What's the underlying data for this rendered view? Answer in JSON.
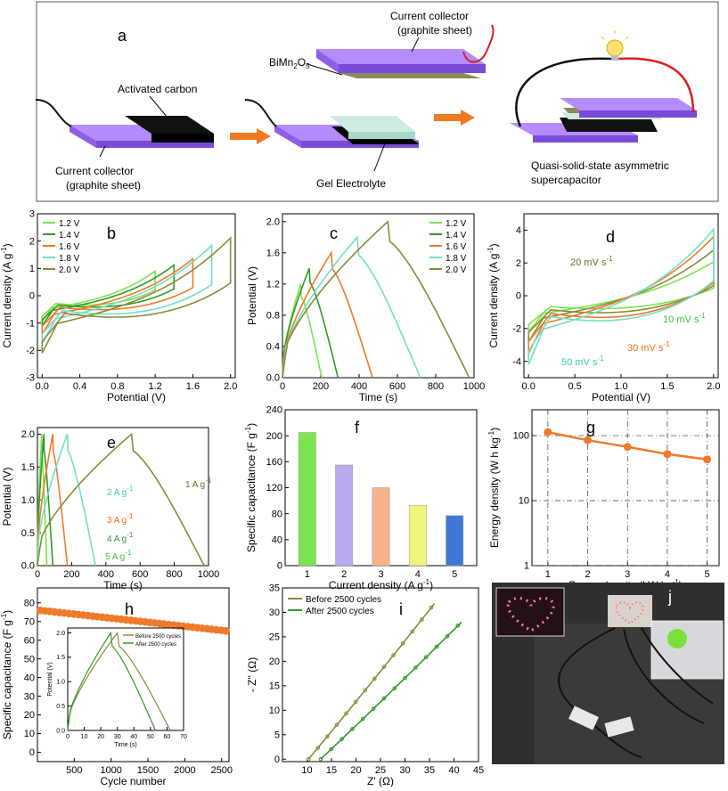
{
  "schematic": {
    "panel": "a",
    "labels": {
      "current_collector_top": "Current collector",
      "current_collector_top_2": "(graphite sheet)",
      "bimn": "BiMn",
      "bimn_sub1": "2",
      "bimn_o": "O",
      "bimn_sub2": "5",
      "activated_carbon": "Activated carbon",
      "current_collector_bottom": "Current collector",
      "current_collector_bottom_2": "(graphite sheet)",
      "gel": "Gel Electrolyte",
      "device_1": "Quasi-solid-state asymmetric",
      "device_2": "supercapacitor"
    },
    "colors": {
      "graphite": "#9b6bf2",
      "graphite_dark": "#6a3fc0",
      "carbon": "#111111",
      "gel": "#c9ebe0",
      "bimn": "#8a8a5a",
      "arrow": "#f07a20",
      "wire_red": "#d8201e",
      "bulb": "#ffe070"
    }
  },
  "photo": {
    "panel": "j",
    "colors": {
      "bg": "#2b2b2b",
      "led": "#ff6fa8",
      "fan": "#7be03a"
    }
  },
  "chart_data": [
    {
      "id": "b",
      "panel": "b",
      "type": "line",
      "xlabel": "Potential (V)",
      "ylabel": "Current density (A g",
      "ylabel_sup": "-1",
      "ylabel_end": ")",
      "xlim": [
        -0.05,
        2.05
      ],
      "ylim": [
        -3,
        3
      ],
      "xticks": [
        0.0,
        0.4,
        0.8,
        1.2,
        1.6,
        2.0
      ],
      "xtick_labels": [
        "0.0",
        "0.4",
        "0.8",
        "1.2",
        "1.6",
        "2.0"
      ],
      "yticks": [
        -3,
        -2,
        -1,
        0,
        1,
        2,
        3
      ],
      "ytick_labels": [
        "-3",
        "-2",
        "-1",
        "0",
        "1",
        "2",
        "3"
      ],
      "series": [
        {
          "name": "1.2 V",
          "color": "#7de34f",
          "vmax": 1.2,
          "ipos": 1.0,
          "ineg": -0.95
        },
        {
          "name": "1.4 V",
          "color": "#2f9a2a",
          "vmax": 1.4,
          "ipos": 1.25,
          "ineg": -1.1
        },
        {
          "name": "1.6 V",
          "color": "#ef7a2a",
          "vmax": 1.6,
          "ipos": 1.5,
          "ineg": -1.4
        },
        {
          "name": "1.8 V",
          "color": "#6fe0c6",
          "vmax": 1.8,
          "ipos": 2.05,
          "ineg": -1.75
        },
        {
          "name": "2.0 V",
          "color": "#8a8a3a",
          "vmax": 2.0,
          "ipos": 2.35,
          "ineg": -2.1
        }
      ]
    },
    {
      "id": "c",
      "panel": "c",
      "type": "line",
      "xlabel": "Time (s)",
      "ylabel": "Potential (V)",
      "xlim": [
        0,
        1000
      ],
      "ylim": [
        0,
        2.1
      ],
      "xticks": [
        0,
        200,
        400,
        600,
        800,
        1000
      ],
      "xtick_labels": [
        "0",
        "200",
        "400",
        "600",
        "800",
        "1000"
      ],
      "yticks": [
        0,
        0.4,
        0.8,
        1.2,
        1.6,
        2.0
      ],
      "ytick_labels": [
        "0.0",
        "0.4",
        "0.8",
        "1.2",
        "1.6",
        "2.0"
      ],
      "series": [
        {
          "name": "1.2 V",
          "color": "#7de34f",
          "vmax": 1.2,
          "tc": 95,
          "td": 205
        },
        {
          "name": "1.4 V",
          "color": "#2f9a2a",
          "vmax": 1.4,
          "tc": 140,
          "td": 290
        },
        {
          "name": "1.6 V",
          "color": "#ef7a2a",
          "vmax": 1.6,
          "tc": 255,
          "td": 470
        },
        {
          "name": "1.8 V",
          "color": "#6fe0c6",
          "vmax": 1.8,
          "tc": 390,
          "td": 720
        },
        {
          "name": "2.0 V",
          "color": "#8a8a3a",
          "vmax": 2.0,
          "tc": 550,
          "td": 975
        }
      ]
    },
    {
      "id": "d",
      "panel": "d",
      "type": "line",
      "xlabel": "Potential (V)",
      "ylabel": "Current density (A g",
      "ylabel_sup": "-1",
      "ylabel_end": ")",
      "xlim": [
        -0.05,
        2.05
      ],
      "ylim": [
        -5,
        5
      ],
      "xticks": [
        0.0,
        0.5,
        1.0,
        1.5,
        2.0
      ],
      "xtick_labels": [
        "0.0",
        "0.5",
        "1.0",
        "1.5",
        "2.0"
      ],
      "yticks": [
        -4,
        -2,
        0,
        2,
        4
      ],
      "ytick_labels": [
        "-4",
        "-2",
        "0",
        "2",
        "4"
      ],
      "series": [
        {
          "name": "10 mV s",
          "color": "#7de34f",
          "ipos": 2.3,
          "ineg": -2.2
        },
        {
          "name": "20 mV s",
          "color": "#8a8a3a",
          "ipos": 3.1,
          "ineg": -2.8
        },
        {
          "name": "30 mV s",
          "color": "#ef7a2a",
          "ipos": 4.0,
          "ineg": -3.5
        },
        {
          "name": "50 mV s",
          "color": "#6fe0c6",
          "ipos": 4.5,
          "ineg": -4.2
        }
      ],
      "annotations": [
        {
          "text": "20 mV s",
          "sup": "-1",
          "color": "#6d6d1f"
        },
        {
          "text": "10 mV s",
          "sup": "-1",
          "color": "#3bc23b"
        },
        {
          "text": "30 mV s",
          "sup": "-1",
          "color": "#ef6a1a"
        },
        {
          "text": "50 mV s",
          "sup": "-1",
          "color": "#3bc9b0"
        }
      ]
    },
    {
      "id": "e",
      "panel": "e",
      "type": "line",
      "xlabel": "Time (s)",
      "ylabel": "Potential (V)",
      "xlim": [
        0,
        1000
      ],
      "ylim": [
        0,
        2.1
      ],
      "xticks": [
        0,
        200,
        400,
        600,
        800,
        1000
      ],
      "xtick_labels": [
        "0",
        "200",
        "400",
        "600",
        "800",
        "1000"
      ],
      "yticks": [
        0,
        0.5,
        1.0,
        1.5,
        2.0
      ],
      "ytick_labels": [
        "0.0",
        "0.5",
        "1.0",
        "1.5",
        "2.0"
      ],
      "series": [
        {
          "name": "5 A g",
          "color": "#7de34f",
          "tc": 25,
          "td": 55
        },
        {
          "name": "4 A g",
          "color": "#2f9a2a",
          "tc": 38,
          "td": 90
        },
        {
          "name": "3 A g",
          "color": "#ef7a2a",
          "tc": 90,
          "td": 175
        },
        {
          "name": "2 A g",
          "color": "#6fe0c6",
          "tc": 175,
          "td": 340
        },
        {
          "name": "1 A g",
          "color": "#8a8a3a",
          "tc": 550,
          "td": 975
        }
      ],
      "annotations": [
        {
          "text": "2 A g",
          "sup": "-1",
          "color": "#3bc9b0"
        },
        {
          "text": "3 A g",
          "sup": "-1",
          "color": "#ef6a1a"
        },
        {
          "text": "4 A g",
          "sup": "-1",
          "color": "#2f9a2a"
        },
        {
          "text": "5 A g",
          "sup": "-1",
          "color": "#3bc23b"
        },
        {
          "text": "1 A g",
          "sup": "-1",
          "color": "#6d6d1f"
        }
      ]
    },
    {
      "id": "f",
      "panel": "f",
      "type": "bar",
      "xlabel": "Current density (A g",
      "xlabel_sup": "-1",
      "xlabel_end": ")",
      "ylabel": "Specific capacitance (F g",
      "ylabel_sup": "-1",
      "ylabel_end": ")",
      "categories": [
        "1",
        "2",
        "3",
        "4",
        "5"
      ],
      "values": [
        205,
        155,
        120,
        93,
        77
      ],
      "colors": [
        "#7de34f",
        "#b9a9ef",
        "#f6b389",
        "#f1f47a",
        "#3f78d6"
      ],
      "ylim": [
        0,
        240
      ],
      "yticks": [
        0,
        40,
        80,
        120,
        160,
        200,
        240
      ],
      "ytick_labels": [
        "0",
        "40",
        "80",
        "120",
        "160",
        "200",
        "240"
      ]
    },
    {
      "id": "g",
      "panel": "g",
      "type": "line",
      "xlabel": "Power density (kW kg",
      "xlabel_sup": "-1",
      "xlabel_end": ")",
      "ylabel": "Energy density (W h kg",
      "ylabel_sup": "-1",
      "ylabel_end": ")",
      "x": [
        1,
        2,
        3,
        4,
        5
      ],
      "y": [
        113,
        85,
        67,
        52,
        43
      ],
      "color": "#ef7a2a",
      "xlim": [
        0.6,
        5.3
      ],
      "ylog": true,
      "ylim": [
        1,
        250
      ],
      "xticks": [
        1,
        2,
        3,
        4,
        5
      ],
      "xtick_labels": [
        "1",
        "2",
        "3",
        "4",
        "5"
      ],
      "yticks": [
        1,
        10,
        100
      ],
      "ytick_labels": [
        "1",
        "10",
        "100"
      ]
    },
    {
      "id": "h",
      "panel": "h",
      "type": "scatter",
      "xlabel": "Cycle number",
      "ylabel": "Specific capacitance (F g",
      "ylabel_sup": "-1",
      "ylabel_end": ")",
      "xlim": [
        0,
        2600
      ],
      "ylim": [
        -5,
        88
      ],
      "xticks": [
        500,
        1000,
        1500,
        2000,
        2500
      ],
      "xtick_labels": [
        "500",
        "1000",
        "1500",
        "2000",
        "2500"
      ],
      "yticks": [
        0,
        10,
        20,
        30,
        40,
        50,
        60,
        70,
        80
      ],
      "ytick_labels": [
        "0",
        "10",
        "20",
        "30",
        "40",
        "50",
        "60",
        "70",
        "80"
      ],
      "y_start": 76,
      "y_end": 65,
      "n_points": 40,
      "color": "#ef7a2a",
      "inset": {
        "xlabel": "Time (s)",
        "ylabel": "Potential (V)",
        "xlim": [
          0,
          70
        ],
        "ylim": [
          0,
          2.1
        ],
        "xticks": [
          0,
          10,
          20,
          30,
          40,
          50,
          60,
          70
        ],
        "xtick_labels": [
          "0",
          "10",
          "20",
          "30",
          "40",
          "50",
          "60",
          "70"
        ],
        "yticks": [
          0,
          0.5,
          1.0,
          1.5,
          2.0
        ],
        "ytick_labels": [
          "0.0",
          "0.5",
          "1.0",
          "1.5",
          "2.0"
        ],
        "series": [
          {
            "name": "Before 2500 cycles",
            "color": "#8a8a3a",
            "tc": 30,
            "td": 62
          },
          {
            "name": "After 2500 cycles",
            "color": "#2f9a2a",
            "tc": 26,
            "td": 53
          }
        ]
      }
    },
    {
      "id": "i",
      "panel": "i",
      "type": "line",
      "xlabel": "Z' (Ω)",
      "ylabel": "- Z'' (Ω)",
      "xlim": [
        5,
        45
      ],
      "ylim": [
        -0.5,
        35
      ],
      "xticks": [
        10,
        15,
        20,
        25,
        30,
        35,
        40,
        45
      ],
      "xtick_labels": [
        "10",
        "15",
        "20",
        "25",
        "30",
        "35",
        "40",
        "45"
      ],
      "yticks": [
        0,
        5,
        10,
        15,
        20,
        25,
        30,
        35
      ],
      "ytick_labels": [
        "0",
        "5",
        "10",
        "15",
        "20",
        "25",
        "30",
        "35"
      ],
      "series": [
        {
          "name": "Before 2500 cycles",
          "color": "#8a8a3a",
          "x0": 10.3,
          "x1": 36.0,
          "y1": 31.8
        },
        {
          "name": "After 2500 cycles",
          "color": "#2f9a2a",
          "x0": 12.8,
          "x1": 41.5,
          "y1": 28.0
        }
      ]
    }
  ]
}
